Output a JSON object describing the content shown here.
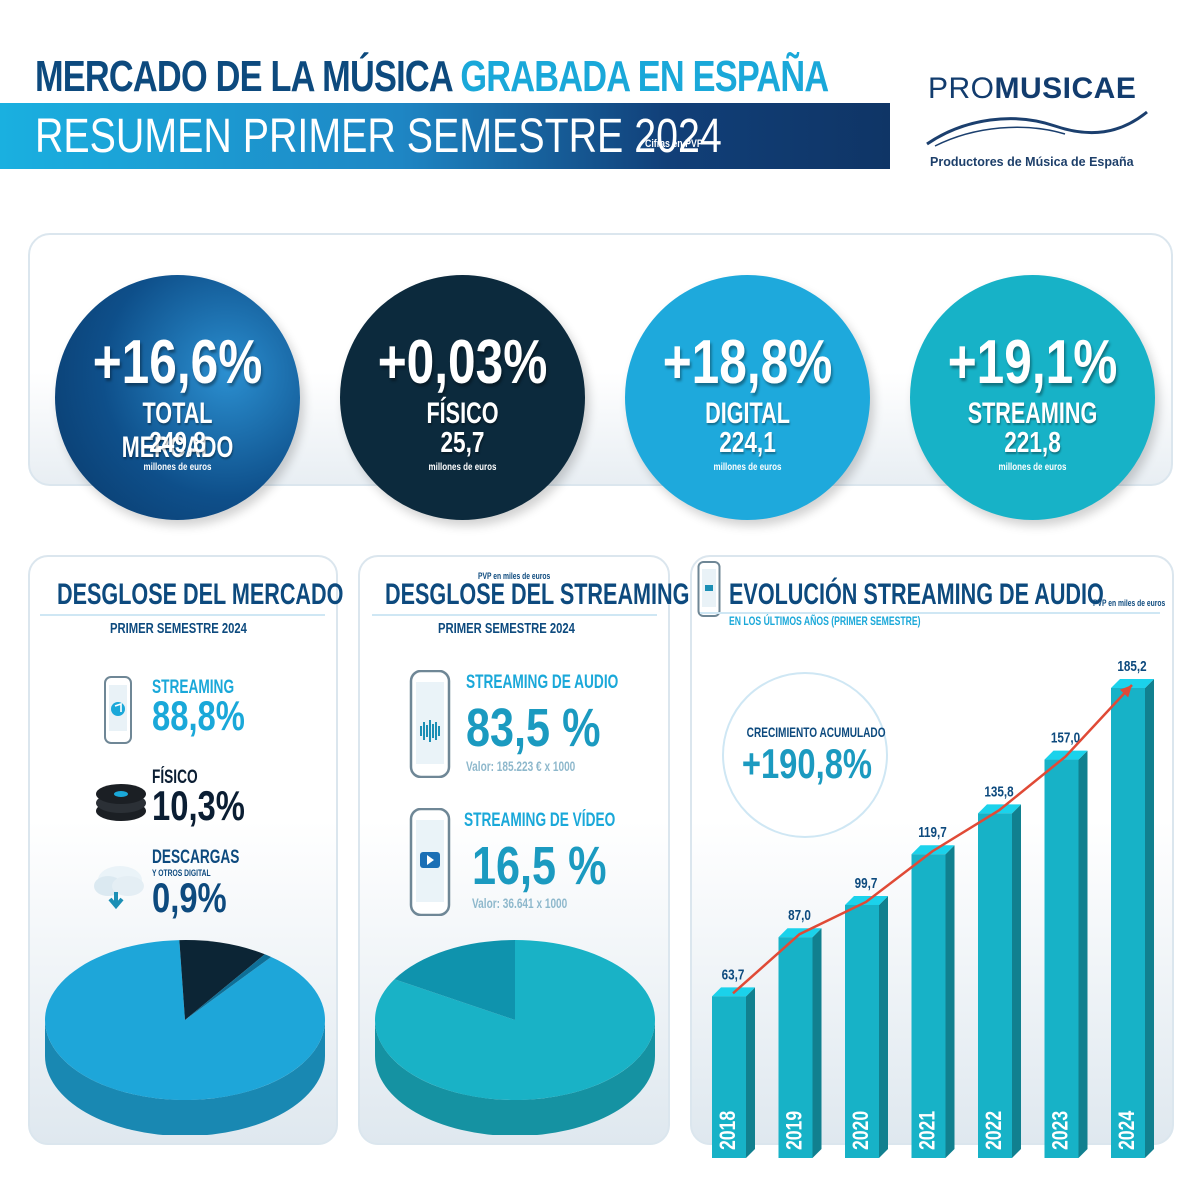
{
  "header": {
    "title_part1": "MERCADO DE LA MÚSICA",
    "title_part2": "GRABADA EN ESPAÑA",
    "subtitle": "RESUMEN PRIMER SEMESTRE 2024",
    "note": "Cifras en PVP",
    "colors": {
      "dark_blue": "#0d4a7e",
      "light_blue": "#1aa8d9"
    }
  },
  "logo": {
    "word_light": "PRO",
    "word_bold": "MUSICAE",
    "tagline": "Productores de Música de España"
  },
  "kpis": [
    {
      "pct": "+16,6%",
      "label": "TOTAL MERCADO",
      "amount": "249,8",
      "unit": "millones de euros",
      "color": "#0e4f8a"
    },
    {
      "pct": "+0,03%",
      "label": "FÍSICO",
      "amount": "25,7",
      "unit": "millones de euros",
      "color": "#0c2a3d"
    },
    {
      "pct": "+18,8%",
      "label": "DIGITAL",
      "amount": "224,1",
      "unit": "millones de euros",
      "color": "#1ea9dc"
    },
    {
      "pct": "+19,1%",
      "label": "STREAMING",
      "amount": "221,8",
      "unit": "millones de euros",
      "color": "#17b2c7"
    }
  ],
  "market": {
    "title": "DESGLOSE DEL MERCADO",
    "subtitle": "PRIMER SEMESTRE 2024",
    "streaming_label": "STREAMING",
    "streaming_value": "88,8%",
    "fisico_label": "FÍSICO",
    "fisico_value": "10,3%",
    "descargas_label": "DESCARGAS",
    "descargas_sub": "Y OTROS DIGITAL",
    "descargas_value": "0,9%",
    "icons": [
      "smartphone-icon",
      "vinyl-records-icon",
      "cloud-download-icon"
    ]
  },
  "streaming": {
    "note": "PVP en miles de euros",
    "title": "DESGLOSE DEL STREAMING",
    "subtitle": "PRIMER SEMESTRE 2024",
    "audio_label": "STREAMING DE AUDIO",
    "audio_value": "83,5 %",
    "audio_detail": "Valor: 185.223 € x 1000",
    "video_label": "STREAMING DE VÍDEO",
    "video_value": "16,5 %",
    "video_detail": "Valor: 36.641 x 1000",
    "icons": [
      "phone-audio-icon",
      "phone-video-icon"
    ]
  },
  "evolution": {
    "title": "EVOLUCIÓN STREAMING DE AUDIO",
    "note": "PVP en miles de euros",
    "subtitle": "EN LOS ÚLTIMOS AÑOS (PRIMER SEMESTRE)",
    "growth_label": "CRECIMIENTO ACUMULADO",
    "growth_value": "+190,8%"
  },
  "chart_data": [
    {
      "type": "pie",
      "categories": [
        "STREAMING",
        "FÍSICO",
        "DESCARGAS Y OTROS DIGITAL"
      ],
      "values": [
        88.8,
        10.3,
        0.9
      ],
      "colors": [
        "#1ea6d9",
        "#0c2535",
        "#0e6f97"
      ]
    },
    {
      "type": "pie",
      "categories": [
        "STREAMING DE AUDIO",
        "STREAMING DE VÍDEO"
      ],
      "values": [
        83.5,
        16.5
      ],
      "colors": [
        "#19b2c6",
        "#0f93ad"
      ]
    },
    {
      "type": "bar",
      "categories": [
        "2018",
        "2019",
        "2020",
        "2021",
        "2022",
        "2023",
        "2024"
      ],
      "values": [
        63.7,
        87.0,
        99.7,
        119.7,
        135.8,
        157.0,
        185.2
      ],
      "labels": [
        "63,7",
        "87,0",
        "99,7",
        "119,7",
        "135,8",
        "157,0",
        "185,2"
      ],
      "ylim": [
        0,
        185.2
      ],
      "trend_line": true,
      "bar_color": "#17b2c7",
      "line_color": "#e04a36"
    }
  ]
}
